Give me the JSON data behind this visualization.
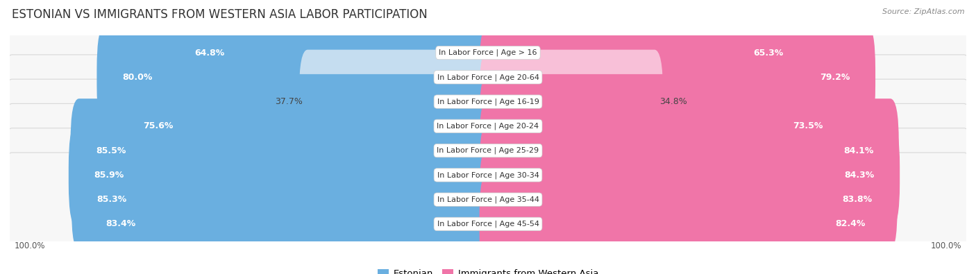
{
  "title": "ESTONIAN VS IMMIGRANTS FROM WESTERN ASIA LABOR PARTICIPATION",
  "source": "Source: ZipAtlas.com",
  "categories": [
    "In Labor Force | Age > 16",
    "In Labor Force | Age 20-64",
    "In Labor Force | Age 16-19",
    "In Labor Force | Age 20-24",
    "In Labor Force | Age 25-29",
    "In Labor Force | Age 30-34",
    "In Labor Force | Age 35-44",
    "In Labor Force | Age 45-54"
  ],
  "estonian_values": [
    64.8,
    80.0,
    37.7,
    75.6,
    85.5,
    85.9,
    85.3,
    83.4
  ],
  "immigrant_values": [
    65.3,
    79.2,
    34.8,
    73.5,
    84.1,
    84.3,
    83.8,
    82.4
  ],
  "estonian_color": "#6aafe0",
  "estonian_color_light": "#c5ddf0",
  "immigrant_color": "#f075a8",
  "immigrant_color_light": "#f8c0d8",
  "row_bg_color": "#f2f2f2",
  "row_border_color": "#e0e0e0",
  "background_color": "#ffffff",
  "label_fontsize": 9.0,
  "cat_fontsize": 8.0,
  "title_fontsize": 12,
  "max_value": 100.0,
  "legend_labels": [
    "Estonian",
    "Immigrants from Western Asia"
  ],
  "footer_label": "100.0%"
}
